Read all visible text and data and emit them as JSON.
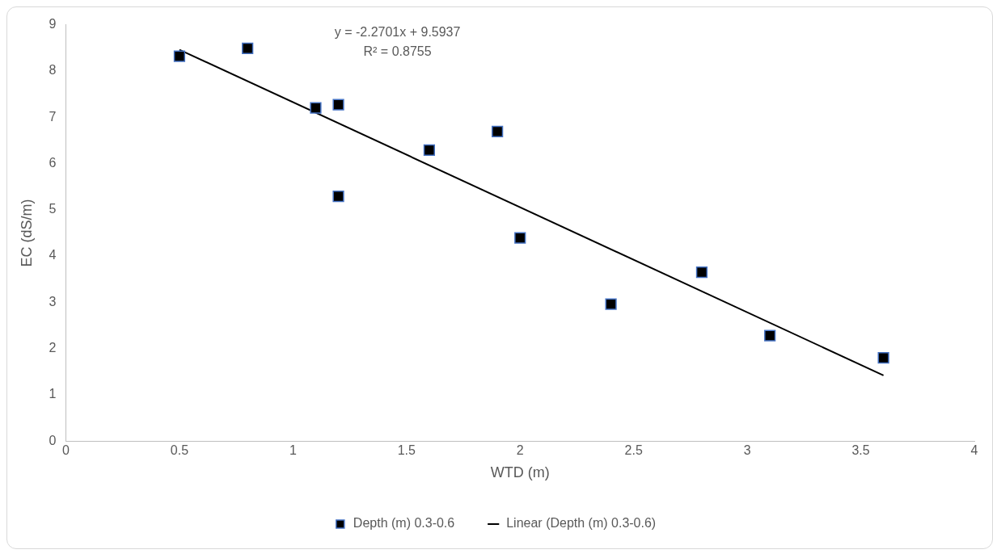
{
  "chart_data": {
    "type": "scatter",
    "xlabel": "WTD (m)",
    "ylabel": "EC (dS/m)",
    "xlim": [
      0,
      4
    ],
    "xticks": [
      0,
      0.5,
      1,
      1.5,
      2,
      2.5,
      3,
      3.5,
      4
    ],
    "ylim": [
      0,
      9
    ],
    "yticks": [
      0,
      1,
      2,
      3,
      4,
      5,
      6,
      7,
      8,
      9
    ],
    "grid": false,
    "legend": "bottom",
    "annotations": [
      "y = -2.2701x + 9.5937",
      "R² = 0.8755"
    ],
    "series": [
      {
        "name": "Depth (m) 0.3-0.6",
        "marker": "square",
        "color": "#000000",
        "x": [
          0.5,
          0.8,
          1.1,
          1.2,
          1.2,
          1.6,
          1.9,
          2.0,
          2.4,
          2.8,
          3.1,
          3.6
        ],
        "values": [
          8.32,
          8.49,
          7.2,
          7.27,
          5.29,
          6.29,
          6.69,
          4.39,
          2.96,
          3.65,
          2.28,
          1.8
        ]
      },
      {
        "name": "Linear (Depth (m) 0.3-0.6)",
        "type": "line",
        "marker": "none",
        "color": "#000000",
        "line_style": "solid",
        "x": [
          0.5,
          3.6
        ],
        "values": [
          8.46,
          1.42
        ]
      }
    ]
  }
}
